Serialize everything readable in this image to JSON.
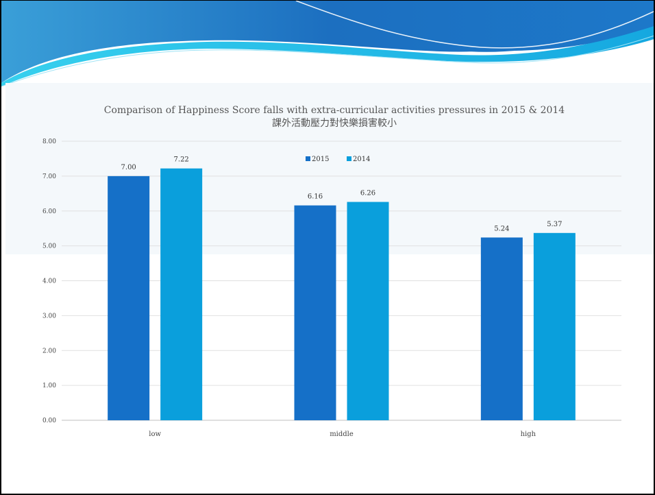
{
  "colors": {
    "series_2015": "#1570c8",
    "series_2014": "#0a9fdc",
    "banner_dark": "#1c6fc0",
    "banner_light": "#22c2e8",
    "gridline": "#e0e0e0"
  },
  "chart_data": {
    "type": "bar",
    "title": "Comparison of Happiness Score falls with extra-curricular activities pressures in 2015 & 2014",
    "subtitle": "課外活動壓力對快樂損害較小",
    "categories": [
      "low",
      "middle",
      "high"
    ],
    "series": [
      {
        "name": "2015",
        "values": [
          7.0,
          6.16,
          5.24
        ],
        "labels": [
          "7.00",
          "6.16",
          "5.24"
        ]
      },
      {
        "name": "2014",
        "values": [
          7.22,
          6.26,
          5.37
        ],
        "labels": [
          "7.22",
          "6.26",
          "5.37"
        ]
      }
    ],
    "ylim": [
      0,
      8
    ],
    "yticks": [
      "0.00",
      "1.00",
      "2.00",
      "3.00",
      "4.00",
      "5.00",
      "6.00",
      "7.00",
      "8.00"
    ],
    "xlabel": "",
    "ylabel": "",
    "grid": true,
    "legend": "top-center"
  }
}
